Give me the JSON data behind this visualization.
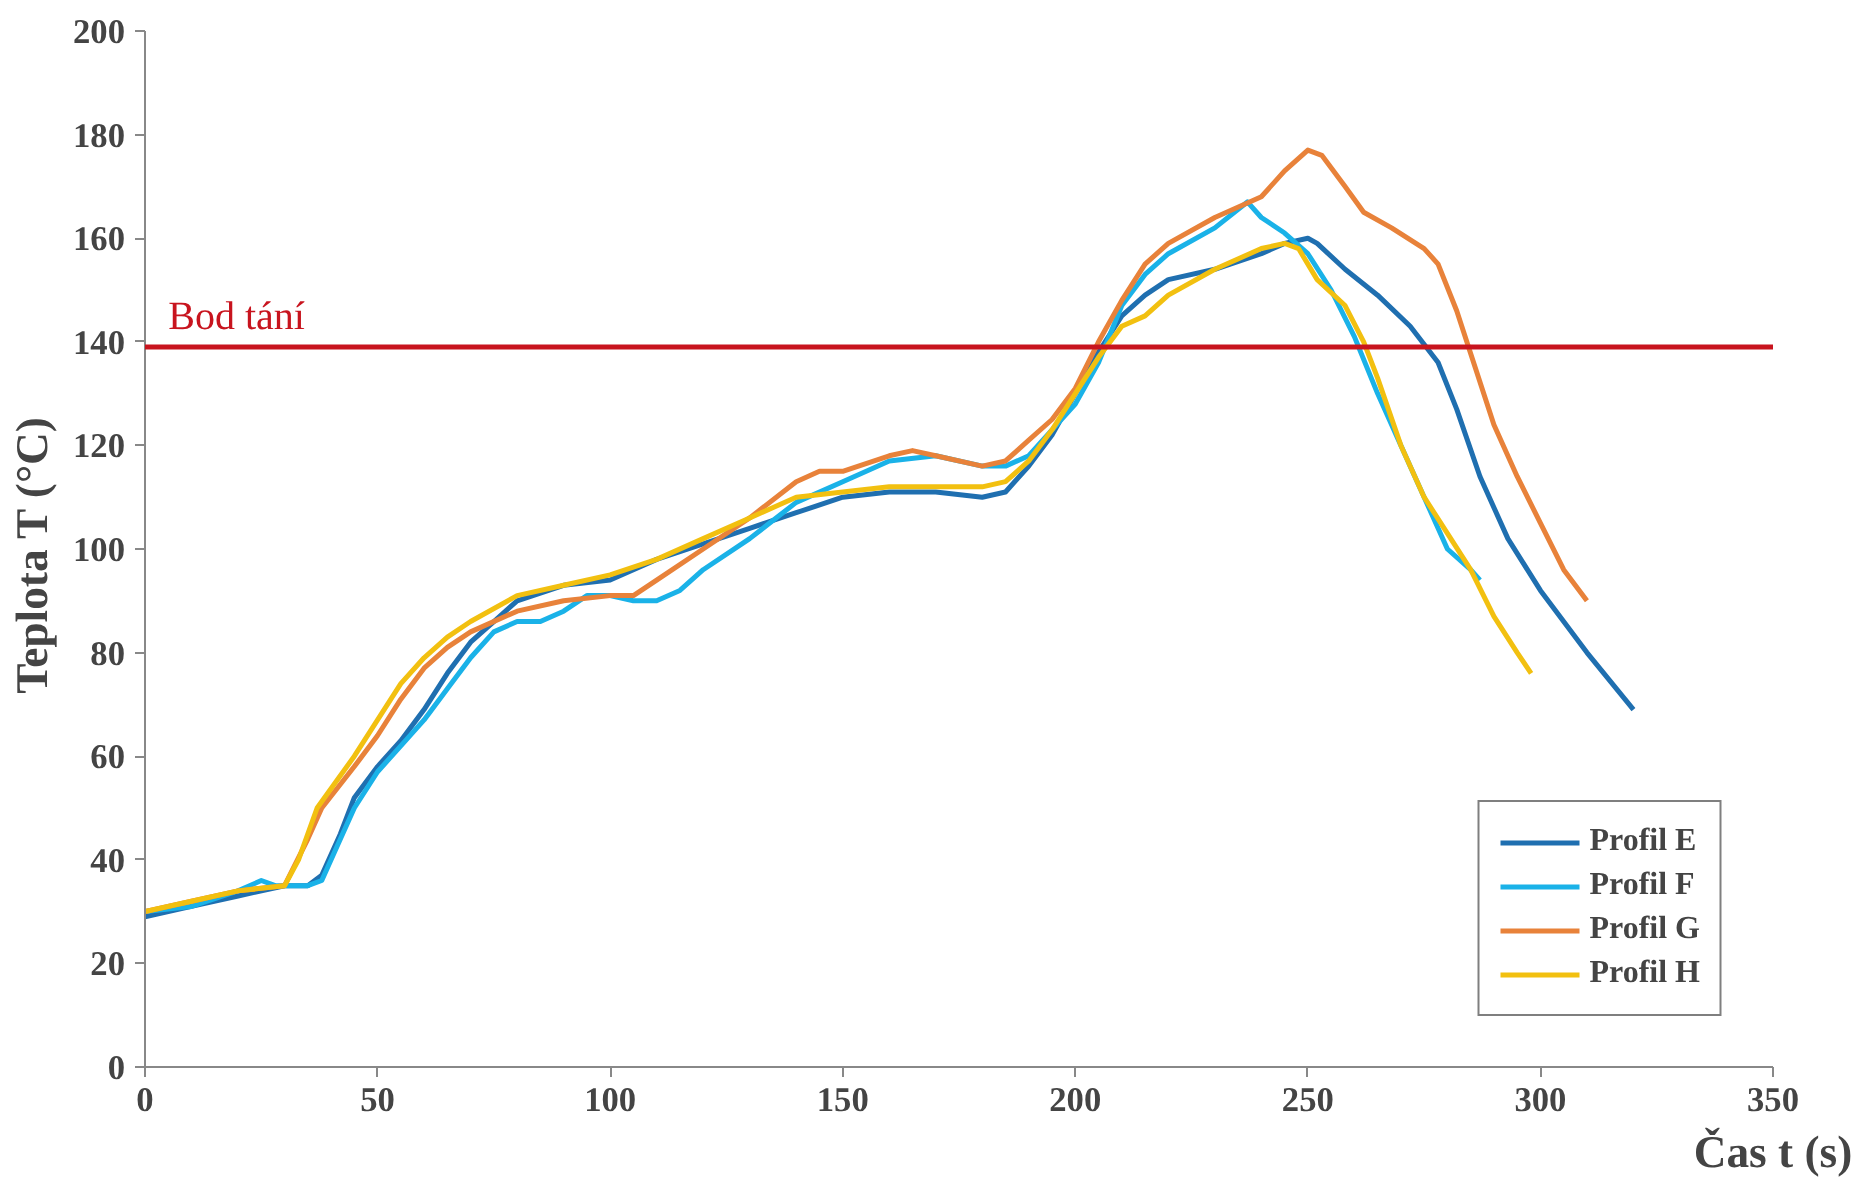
{
  "chart_data": {
    "type": "line",
    "xlabel": "Čas t (s)",
    "ylabel": "Teplota  T (°C)",
    "xlim": [
      0,
      350
    ],
    "xticks": [
      0,
      50,
      100,
      150,
      200,
      250,
      300,
      350
    ],
    "ylim": [
      0,
      200
    ],
    "yticks": [
      0,
      20,
      40,
      60,
      80,
      100,
      120,
      140,
      160,
      180,
      200
    ],
    "grid": false,
    "legend": "bottom right",
    "marker": "none",
    "line_style": "solid",
    "ref_lines": [
      {
        "axis": "y",
        "value": 139,
        "label": "Bod tání",
        "color": "#c8141e"
      }
    ],
    "series": [
      {
        "name": "Profil E",
        "color": "#1f6fb0",
        "x": [
          0,
          10,
          20,
          30,
          35,
          38,
          42,
          45,
          50,
          55,
          60,
          65,
          70,
          75,
          80,
          90,
          100,
          110,
          120,
          130,
          140,
          150,
          160,
          170,
          180,
          185,
          190,
          195,
          200,
          205,
          210,
          215,
          220,
          230,
          240,
          245,
          250,
          252,
          258,
          265,
          272,
          278,
          282,
          287,
          293,
          300,
          310,
          320
        ],
        "values": [
          29,
          31,
          33,
          35,
          35,
          37,
          45,
          52,
          58,
          63,
          69,
          76,
          82,
          86,
          90,
          93,
          94,
          98,
          101,
          104,
          107,
          110,
          111,
          111,
          110,
          111,
          116,
          122,
          130,
          138,
          145,
          149,
          152,
          154,
          157,
          159,
          160,
          159,
          154,
          149,
          143,
          136,
          127,
          114,
          102,
          92,
          80,
          69
        ]
      },
      {
        "name": "Profil F",
        "color": "#1ab2e8",
        "x": [
          0,
          10,
          20,
          25,
          28,
          35,
          38,
          42,
          45,
          50,
          55,
          60,
          65,
          70,
          75,
          80,
          85,
          90,
          95,
          100,
          105,
          110,
          115,
          120,
          130,
          140,
          150,
          160,
          170,
          180,
          185,
          190,
          195,
          200,
          205,
          210,
          215,
          220,
          230,
          237,
          240,
          245,
          250,
          255,
          260,
          265,
          270,
          275,
          280,
          285,
          287
        ],
        "values": [
          30,
          31,
          34,
          36,
          35,
          35,
          36,
          44,
          50,
          57,
          62,
          67,
          73,
          79,
          84,
          86,
          86,
          88,
          91,
          91,
          90,
          90,
          92,
          96,
          102,
          109,
          113,
          117,
          118,
          116,
          116,
          118,
          123,
          128,
          136,
          147,
          153,
          157,
          162,
          167,
          164,
          161,
          157,
          150,
          141,
          130,
          120,
          110,
          100,
          96,
          94
        ]
      },
      {
        "name": "Profil G",
        "color": "#e8823a",
        "x": [
          0,
          10,
          20,
          30,
          35,
          38,
          45,
          50,
          55,
          60,
          65,
          70,
          80,
          90,
          100,
          105,
          110,
          120,
          130,
          140,
          145,
          150,
          160,
          165,
          170,
          180,
          185,
          190,
          195,
          200,
          205,
          210,
          215,
          220,
          230,
          240,
          245,
          250,
          253,
          258,
          262,
          268,
          275,
          278,
          282,
          286,
          290,
          295,
          300,
          305,
          310
        ],
        "values": [
          30,
          32,
          34,
          35,
          44,
          50,
          58,
          64,
          71,
          77,
          81,
          84,
          88,
          90,
          91,
          91,
          94,
          100,
          106,
          113,
          115,
          115,
          118,
          119,
          118,
          116,
          117,
          121,
          125,
          131,
          140,
          148,
          155,
          159,
          164,
          168,
          173,
          177,
          176,
          170,
          165,
          162,
          158,
          155,
          146,
          135,
          124,
          114,
          105,
          96,
          90
        ]
      },
      {
        "name": "Profil H",
        "color": "#f2c010",
        "x": [
          0,
          10,
          20,
          30,
          33,
          37,
          45,
          50,
          55,
          60,
          65,
          70,
          80,
          90,
          100,
          110,
          120,
          130,
          140,
          150,
          160,
          170,
          180,
          185,
          190,
          195,
          200,
          205,
          210,
          215,
          220,
          230,
          240,
          245,
          248,
          252,
          258,
          262,
          265,
          270,
          275,
          280,
          285,
          290,
          295,
          298
        ],
        "values": [
          30,
          32,
          34,
          35,
          40,
          50,
          60,
          67,
          74,
          79,
          83,
          86,
          91,
          93,
          95,
          98,
          102,
          106,
          110,
          111,
          112,
          112,
          112,
          113,
          117,
          123,
          130,
          137,
          143,
          145,
          149,
          154,
          158,
          159,
          158,
          152,
          147,
          140,
          133,
          120,
          110,
          103,
          96,
          87,
          80,
          76
        ]
      }
    ]
  }
}
